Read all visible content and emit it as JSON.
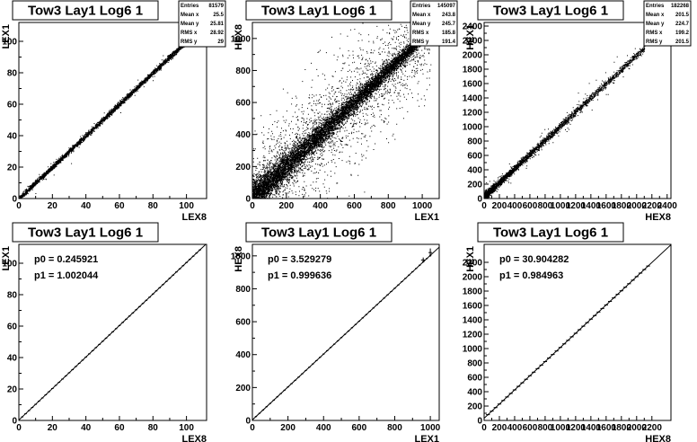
{
  "chart_data": [
    {
      "type": "scatter",
      "title": "Tow3 Lay1 Log6 1",
      "xlabel": "LEX8",
      "ylabel": "LEX1",
      "xlim": [
        0,
        112
      ],
      "ylim": [
        0,
        112
      ],
      "xticks": [
        0,
        20,
        40,
        60,
        80,
        100
      ],
      "yticks": [
        0,
        20,
        40,
        60,
        80,
        100
      ],
      "stats": [
        {
          "label": "Entries",
          "value": "81579"
        },
        {
          "label": "Mean x",
          "value": "25.5"
        },
        {
          "label": "Mean y",
          "value": "25.81"
        },
        {
          "label": "RMS x",
          "value": "28.92"
        },
        {
          "label": "RMS y",
          "value": "29"
        }
      ],
      "trend": {
        "slope": 1.0,
        "intercept": 0.25,
        "x_max": 104,
        "spread": 0.8
      }
    },
    {
      "type": "scatter",
      "title": "Tow3 Lay1 Log6 1",
      "xlabel": "LEX1",
      "ylabel": "HEX8",
      "xlim": [
        0,
        1100
      ],
      "ylim": [
        0,
        1100
      ],
      "xticks": [
        0,
        200,
        400,
        600,
        800,
        1000
      ],
      "yticks": [
        0,
        200,
        400,
        600,
        800,
        1000
      ],
      "stats": [
        {
          "label": "Entries",
          "value": "145097"
        },
        {
          "label": "Mean x",
          "value": "243.8"
        },
        {
          "label": "Mean y",
          "value": "245.7"
        },
        {
          "label": "RMS x",
          "value": "185.8"
        },
        {
          "label": "RMS y",
          "value": "191.4"
        }
      ],
      "trend": {
        "slope": 1.0,
        "intercept": 3.5,
        "x_max": 1050,
        "spread": 40
      }
    },
    {
      "type": "scatter",
      "title": "Tow3 Lay1 Log6 1",
      "xlabel": "HEX8",
      "ylabel": "HEX1",
      "xlim": [
        0,
        2450
      ],
      "ylim": [
        0,
        2450
      ],
      "xticks": [
        0,
        200,
        400,
        600,
        800,
        1000,
        1200,
        1400,
        1600,
        1800,
        2000,
        2200,
        2400
      ],
      "yticks": [
        0,
        200,
        400,
        600,
        800,
        1000,
        1200,
        1400,
        1600,
        1800,
        2000,
        2200,
        2400
      ],
      "stats": [
        {
          "label": "Entries",
          "value": "182268"
        },
        {
          "label": "Mean x",
          "value": "201.5"
        },
        {
          "label": "Mean y",
          "value": "224.7"
        },
        {
          "label": "RMS x",
          "value": "199.2"
        },
        {
          "label": "RMS y",
          "value": "201.5"
        }
      ],
      "trend": {
        "slope": 0.985,
        "intercept": 30.9,
        "x_max": 2100,
        "spread": 25
      }
    },
    {
      "type": "line",
      "title": "Tow3 Lay1 Log6 1",
      "xlabel": "LEX8",
      "ylabel": "LEX1",
      "xlim": [
        0,
        112
      ],
      "ylim": [
        0,
        112
      ],
      "xticks": [
        0,
        20,
        40,
        60,
        80,
        100
      ],
      "yticks": [
        0,
        20,
        40,
        60,
        80,
        100
      ],
      "fit": [
        "p0 = 0.245921",
        "p1 = 1.002044"
      ],
      "fit_params": {
        "p0": 0.245921,
        "p1": 1.002044
      },
      "points": {
        "x_start": 2,
        "x_end": 108,
        "step": 2,
        "xerr": 0.7,
        "yerr": 0.3
      }
    },
    {
      "type": "line",
      "title": "Tow3 Lay1 Log6 1",
      "xlabel": "LEX1",
      "ylabel": "HEX8",
      "xlim": [
        0,
        1050
      ],
      "ylim": [
        0,
        1070
      ],
      "xticks": [
        0,
        200,
        400,
        600,
        800,
        1000
      ],
      "yticks": [
        0,
        200,
        400,
        600,
        800,
        1000
      ],
      "fit": [
        "p0 = 3.529279",
        "p1 = 0.999636"
      ],
      "fit_params": {
        "p0": 3.529279,
        "p1": 0.999636
      },
      "points": {
        "x_start": 20,
        "x_end": 1000,
        "step": 20,
        "xerr": 6,
        "yerr": 3
      },
      "outliers": [
        {
          "x": 960,
          "y": 975,
          "xerr": 12,
          "yerr": 15
        },
        {
          "x": 1000,
          "y": 1020,
          "xerr": 10,
          "yerr": 25
        }
      ]
    },
    {
      "type": "line",
      "title": "Tow3 Lay1 Log6 1",
      "xlabel": "HEX8",
      "ylabel": "HEX1",
      "xlim": [
        0,
        2450
      ],
      "ylim": [
        0,
        2450
      ],
      "xticks": [
        0,
        200,
        400,
        600,
        800,
        1000,
        1200,
        1400,
        1600,
        1800,
        2000,
        2200
      ],
      "yticks": [
        0,
        200,
        400,
        600,
        800,
        1000,
        1200,
        1400,
        1600,
        1800,
        2000,
        2200
      ],
      "fit": [
        "p0 = 30.904282",
        "p1 = 0.984963"
      ],
      "fit_params": {
        "p0": 30.904282,
        "p1": 0.984963
      },
      "points": {
        "x_start": 50,
        "x_end": 2150,
        "step": 50,
        "xerr": 25,
        "yerr": 8
      }
    }
  ]
}
